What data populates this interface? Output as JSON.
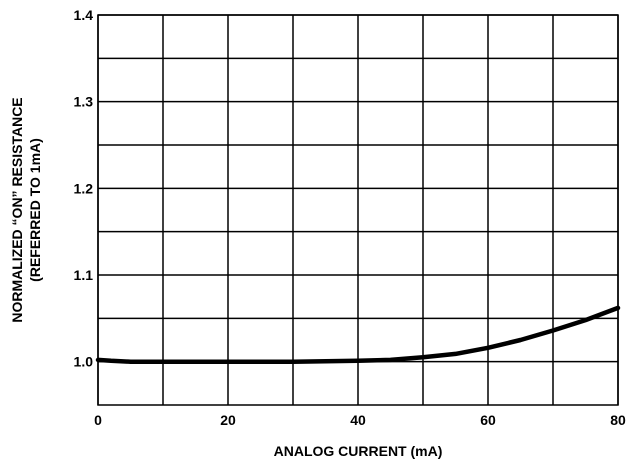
{
  "chart_data": {
    "type": "line",
    "xlabel": "ANALOG CURRENT (mA)",
    "ylabel_lines": [
      "NORMALIZED “ON” RESISTANCE",
      "(REFERRED TO 1mA)"
    ],
    "xlim": [
      0,
      80
    ],
    "ylim": [
      0.95,
      1.4
    ],
    "x_ticks": [
      0,
      20,
      40,
      60,
      80
    ],
    "x_tick_labels": [
      "0",
      "20",
      "40",
      "60",
      "80"
    ],
    "y_ticks": [
      1.0,
      1.1,
      1.2,
      1.3,
      1.4
    ],
    "y_tick_labels": [
      "1.0",
      "1.1",
      "1.2",
      "1.3",
      "1.4"
    ],
    "grid_x": [
      0,
      10,
      20,
      30,
      40,
      50,
      60,
      70,
      80
    ],
    "grid_y": [
      1.0,
      1.05,
      1.1,
      1.15,
      1.2,
      1.25,
      1.3,
      1.35,
      1.4
    ],
    "grid": true,
    "series": [
      {
        "x": [
          0,
          2,
          5,
          10,
          20,
          30,
          40,
          45,
          50,
          55,
          60,
          65,
          70,
          75,
          80
        ],
        "y": [
          1.002,
          1.001,
          1.0,
          1.0,
          1.0,
          1.0,
          1.001,
          1.002,
          1.005,
          1.009,
          1.016,
          1.025,
          1.036,
          1.048,
          1.062
        ]
      }
    ]
  }
}
